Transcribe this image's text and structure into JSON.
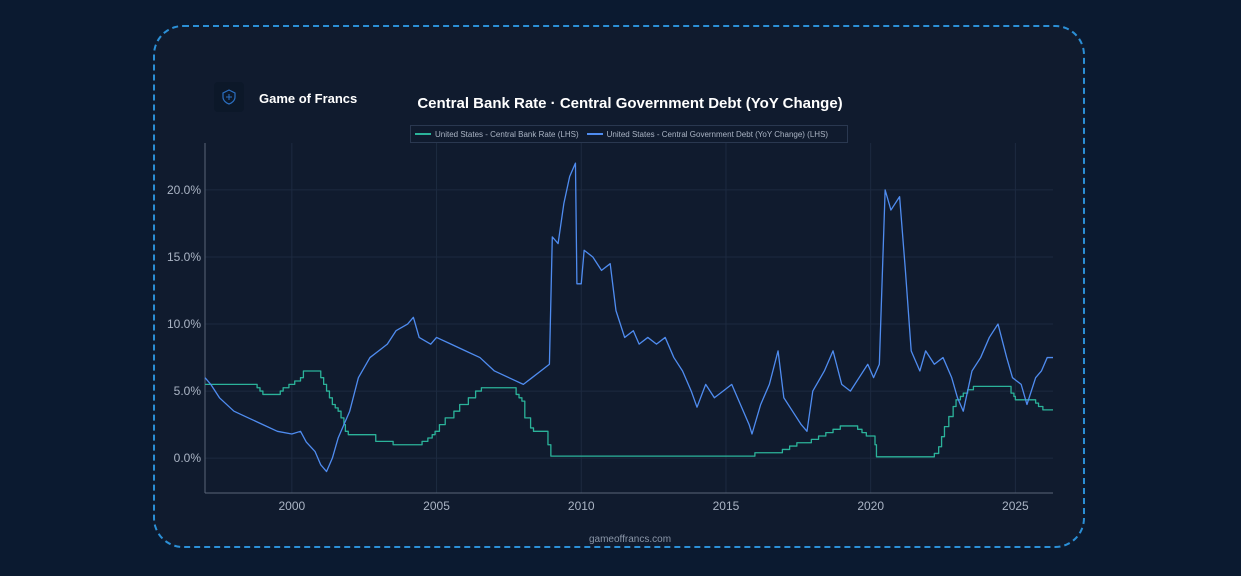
{
  "brand": {
    "name": "Game of Francs",
    "logo_icon": "shield-icon"
  },
  "footer": {
    "text": "gameoffrancs.com"
  },
  "chart_data": {
    "type": "line",
    "title": "Central Bank Rate · Central Government Debt (YoY Change)",
    "xlabel": "",
    "ylabel": "",
    "xlim": [
      1997.0,
      2026.3
    ],
    "ylim": [
      -2.6,
      23.5
    ],
    "x_ticks": [
      2000,
      2005,
      2010,
      2015,
      2020,
      2025
    ],
    "y_ticks": [
      0,
      5,
      10,
      15,
      20
    ],
    "y_tick_labels": [
      "0.0%",
      "5.0%",
      "10.0%",
      "15.0%",
      "20.0%"
    ],
    "grid": true,
    "legend_position": "top-center",
    "series": [
      {
        "name": "United States - Central Bank Rate (LHS)",
        "color": "#2bb39a",
        "step": true,
        "points": [
          [
            1997.0,
            5.5
          ],
          [
            1998.7,
            5.5
          ],
          [
            1998.8,
            5.25
          ],
          [
            1998.9,
            5.0
          ],
          [
            1999.0,
            4.75
          ],
          [
            1999.5,
            4.75
          ],
          [
            1999.6,
            5.0
          ],
          [
            1999.7,
            5.25
          ],
          [
            1999.9,
            5.5
          ],
          [
            2000.1,
            5.75
          ],
          [
            2000.3,
            6.0
          ],
          [
            2000.4,
            6.5
          ],
          [
            2000.9,
            6.5
          ],
          [
            2001.0,
            6.0
          ],
          [
            2001.1,
            5.5
          ],
          [
            2001.2,
            5.0
          ],
          [
            2001.3,
            4.5
          ],
          [
            2001.4,
            4.0
          ],
          [
            2001.5,
            3.75
          ],
          [
            2001.6,
            3.5
          ],
          [
            2001.7,
            3.0
          ],
          [
            2001.8,
            2.5
          ],
          [
            2001.85,
            2.0
          ],
          [
            2001.95,
            1.75
          ],
          [
            2002.85,
            1.75
          ],
          [
            2002.9,
            1.25
          ],
          [
            2003.45,
            1.25
          ],
          [
            2003.5,
            1.0
          ],
          [
            2004.45,
            1.0
          ],
          [
            2004.5,
            1.25
          ],
          [
            2004.7,
            1.5
          ],
          [
            2004.85,
            1.75
          ],
          [
            2004.95,
            2.0
          ],
          [
            2005.1,
            2.5
          ],
          [
            2005.3,
            3.0
          ],
          [
            2005.6,
            3.5
          ],
          [
            2005.8,
            4.0
          ],
          [
            2006.1,
            4.5
          ],
          [
            2006.35,
            5.0
          ],
          [
            2006.55,
            5.25
          ],
          [
            2007.7,
            5.25
          ],
          [
            2007.75,
            4.75
          ],
          [
            2007.85,
            4.5
          ],
          [
            2007.95,
            4.25
          ],
          [
            2008.05,
            3.0
          ],
          [
            2008.25,
            2.25
          ],
          [
            2008.35,
            2.0
          ],
          [
            2008.8,
            2.0
          ],
          [
            2008.85,
            1.0
          ],
          [
            2008.95,
            0.15
          ],
          [
            2012.0,
            0.15
          ],
          [
            2015.95,
            0.15
          ],
          [
            2016.0,
            0.4
          ],
          [
            2016.95,
            0.65
          ],
          [
            2017.2,
            0.9
          ],
          [
            2017.45,
            1.15
          ],
          [
            2017.95,
            1.4
          ],
          [
            2018.2,
            1.65
          ],
          [
            2018.45,
            1.9
          ],
          [
            2018.7,
            2.15
          ],
          [
            2018.95,
            2.4
          ],
          [
            2019.55,
            2.15
          ],
          [
            2019.7,
            1.9
          ],
          [
            2019.85,
            1.65
          ],
          [
            2020.15,
            1.0
          ],
          [
            2020.2,
            0.1
          ],
          [
            2022.2,
            0.35
          ],
          [
            2022.35,
            0.85
          ],
          [
            2022.45,
            1.6
          ],
          [
            2022.55,
            2.35
          ],
          [
            2022.7,
            3.1
          ],
          [
            2022.85,
            3.85
          ],
          [
            2022.95,
            4.35
          ],
          [
            2023.1,
            4.6
          ],
          [
            2023.2,
            4.85
          ],
          [
            2023.35,
            5.1
          ],
          [
            2023.55,
            5.35
          ],
          [
            2024.7,
            5.35
          ],
          [
            2024.85,
            4.85
          ],
          [
            2024.95,
            4.6
          ],
          [
            2025.0,
            4.35
          ],
          [
            2025.7,
            4.1
          ],
          [
            2025.8,
            3.85
          ],
          [
            2025.95,
            3.6
          ],
          [
            2026.3,
            3.6
          ]
        ]
      },
      {
        "name": "United States - Central Government Debt (YoY Change) (LHS)",
        "color": "#4f8cf0",
        "step": false,
        "points": [
          [
            1997.0,
            6.0
          ],
          [
            1997.2,
            5.5
          ],
          [
            1997.5,
            4.5
          ],
          [
            1998.0,
            3.5
          ],
          [
            1998.5,
            3.0
          ],
          [
            1999.0,
            2.5
          ],
          [
            1999.5,
            2.0
          ],
          [
            2000.0,
            1.8
          ],
          [
            2000.3,
            2.0
          ],
          [
            2000.5,
            1.2
          ],
          [
            2000.8,
            0.5
          ],
          [
            2001.0,
            -0.5
          ],
          [
            2001.2,
            -1.0
          ],
          [
            2001.4,
            0.0
          ],
          [
            2001.6,
            1.5
          ],
          [
            2001.8,
            2.5
          ],
          [
            2002.0,
            3.5
          ],
          [
            2002.3,
            6.0
          ],
          [
            2002.7,
            7.5
          ],
          [
            2003.0,
            8.0
          ],
          [
            2003.3,
            8.5
          ],
          [
            2003.6,
            9.5
          ],
          [
            2004.0,
            10.0
          ],
          [
            2004.2,
            10.5
          ],
          [
            2004.4,
            9.0
          ],
          [
            2004.8,
            8.5
          ],
          [
            2005.0,
            9.0
          ],
          [
            2005.5,
            8.5
          ],
          [
            2006.0,
            8.0
          ],
          [
            2006.5,
            7.5
          ],
          [
            2007.0,
            6.5
          ],
          [
            2007.5,
            6.0
          ],
          [
            2008.0,
            5.5
          ],
          [
            2008.3,
            6.0
          ],
          [
            2008.6,
            6.5
          ],
          [
            2008.9,
            7.0
          ],
          [
            2009.0,
            16.5
          ],
          [
            2009.2,
            16.0
          ],
          [
            2009.4,
            19.0
          ],
          [
            2009.6,
            21.0
          ],
          [
            2009.8,
            22.0
          ],
          [
            2009.85,
            13.0
          ],
          [
            2010.0,
            13.0
          ],
          [
            2010.1,
            15.5
          ],
          [
            2010.4,
            15.0
          ],
          [
            2010.7,
            14.0
          ],
          [
            2011.0,
            14.5
          ],
          [
            2011.2,
            11.0
          ],
          [
            2011.5,
            9.0
          ],
          [
            2011.8,
            9.5
          ],
          [
            2012.0,
            8.5
          ],
          [
            2012.3,
            9.0
          ],
          [
            2012.6,
            8.5
          ],
          [
            2012.9,
            9.0
          ],
          [
            2013.2,
            7.5
          ],
          [
            2013.5,
            6.5
          ],
          [
            2013.8,
            5.0
          ],
          [
            2014.0,
            3.8
          ],
          [
            2014.3,
            5.5
          ],
          [
            2014.6,
            4.5
          ],
          [
            2014.9,
            5.0
          ],
          [
            2015.2,
            5.5
          ],
          [
            2015.5,
            4.0
          ],
          [
            2015.8,
            2.5
          ],
          [
            2015.9,
            1.8
          ],
          [
            2016.2,
            4.0
          ],
          [
            2016.5,
            5.5
          ],
          [
            2016.8,
            8.0
          ],
          [
            2017.0,
            4.5
          ],
          [
            2017.3,
            3.5
          ],
          [
            2017.6,
            2.5
          ],
          [
            2017.8,
            2.0
          ],
          [
            2018.0,
            5.0
          ],
          [
            2018.4,
            6.5
          ],
          [
            2018.7,
            8.0
          ],
          [
            2019.0,
            5.5
          ],
          [
            2019.3,
            5.0
          ],
          [
            2019.6,
            6.0
          ],
          [
            2019.9,
            7.0
          ],
          [
            2020.1,
            6.0
          ],
          [
            2020.3,
            7.0
          ],
          [
            2020.5,
            20.0
          ],
          [
            2020.7,
            18.5
          ],
          [
            2021.0,
            19.5
          ],
          [
            2021.2,
            14.0
          ],
          [
            2021.4,
            8.0
          ],
          [
            2021.7,
            6.5
          ],
          [
            2021.9,
            8.0
          ],
          [
            2022.2,
            7.0
          ],
          [
            2022.5,
            7.5
          ],
          [
            2022.8,
            6.0
          ],
          [
            2023.0,
            4.5
          ],
          [
            2023.2,
            3.5
          ],
          [
            2023.5,
            6.5
          ],
          [
            2023.8,
            7.5
          ],
          [
            2024.1,
            9.0
          ],
          [
            2024.4,
            10.0
          ],
          [
            2024.7,
            7.5
          ],
          [
            2024.9,
            6.0
          ],
          [
            2025.2,
            5.5
          ],
          [
            2025.4,
            4.0
          ],
          [
            2025.7,
            6.0
          ],
          [
            2025.9,
            6.5
          ],
          [
            2026.1,
            7.5
          ],
          [
            2026.3,
            7.5
          ]
        ]
      }
    ]
  }
}
